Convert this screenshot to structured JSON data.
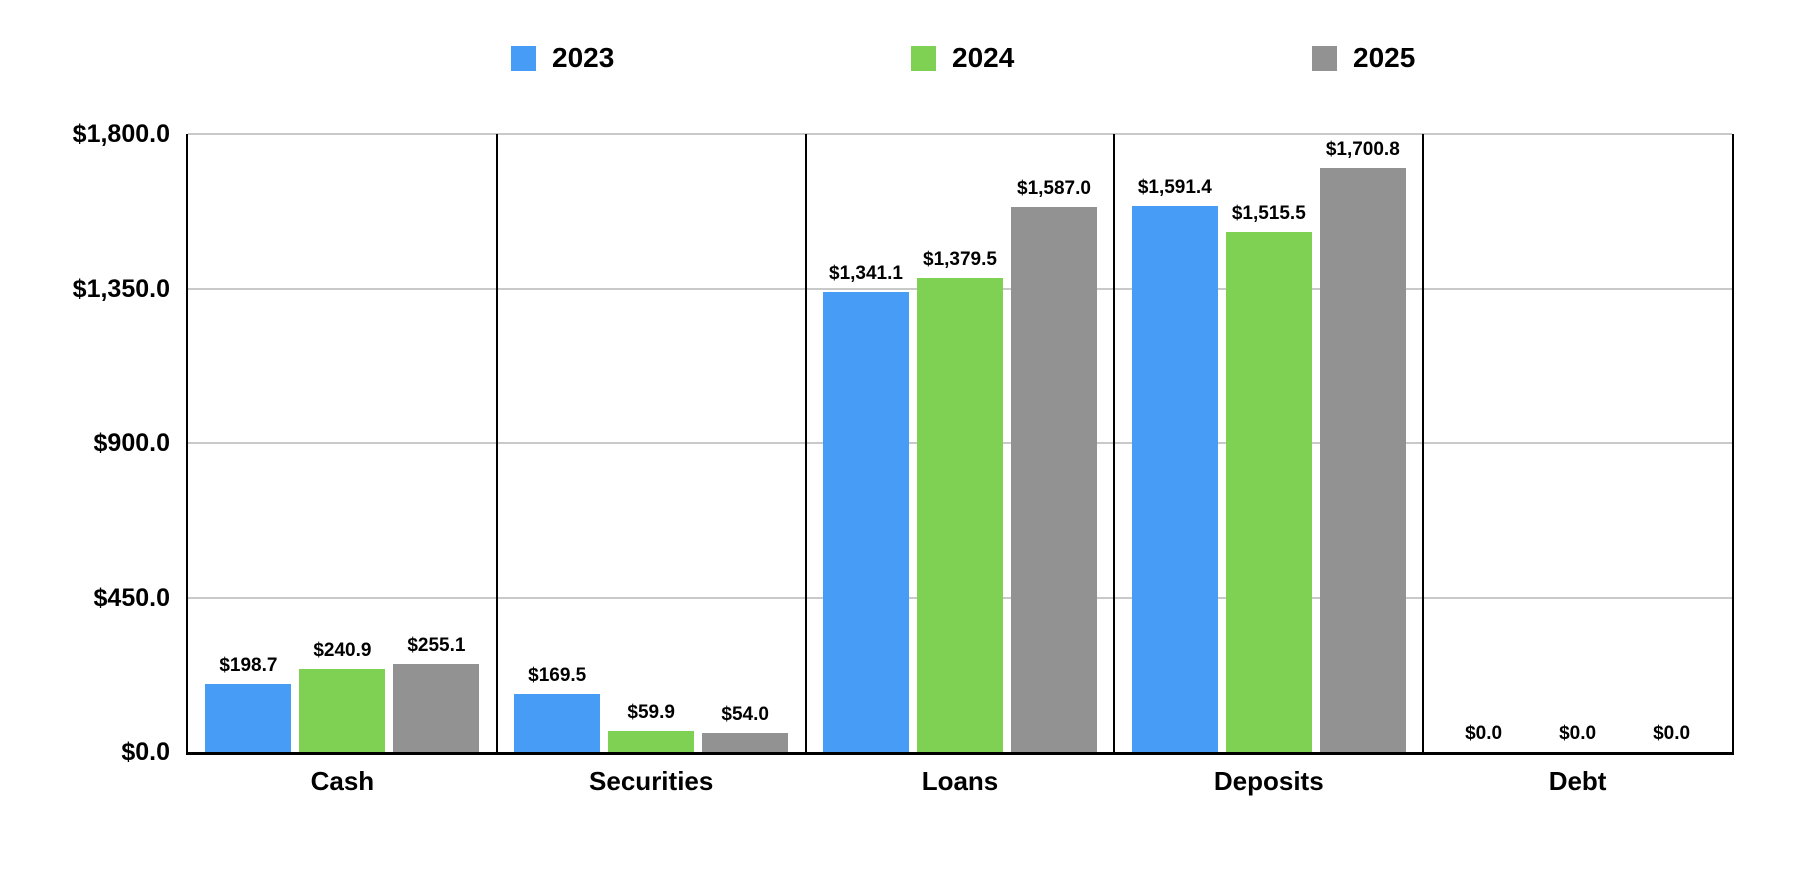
{
  "chart_data": {
    "type": "bar",
    "title": "",
    "xlabel": "",
    "ylabel": "",
    "categories": [
      "Cash",
      "Securities",
      "Loans",
      "Deposits",
      "Debt"
    ],
    "series": [
      {
        "name": "2023",
        "color": "#479CF5",
        "values": [
          198.7,
          169.5,
          1341.1,
          1591.4,
          0.0
        ],
        "labels": [
          "$198.7",
          "$169.5",
          "$1,341.1",
          "$1,591.4",
          "$0.0"
        ]
      },
      {
        "name": "2024",
        "color": "#7ED152",
        "values": [
          240.9,
          59.9,
          1379.5,
          1515.5,
          0.0
        ],
        "labels": [
          "$240.9",
          "$59.9",
          "$1,379.5",
          "$1,515.5",
          "$0.0"
        ]
      },
      {
        "name": "2025",
        "color": "#929292",
        "values": [
          255.1,
          54.0,
          1587.0,
          1700.8,
          0.0
        ],
        "labels": [
          "$255.1",
          "$54.0",
          "$1,587.0",
          "$1,700.8",
          "$0.0"
        ]
      }
    ],
    "y_axis": {
      "ylim": [
        0,
        1800
      ],
      "ticks": [
        {
          "label": "$1,800.0",
          "value": 1800
        },
        {
          "label": "$1,350.0",
          "value": 1350
        },
        {
          "label": "$900.0",
          "value": 900
        },
        {
          "label": "$450.0",
          "value": 450
        },
        {
          "label": "$0.0",
          "value": 0
        }
      ]
    },
    "grid": "horizontal-major",
    "legend_position": "top"
  },
  "colors": {
    "series_2023": "#479CF5",
    "series_2024": "#7ED152",
    "series_2025": "#929292",
    "gridline": "#C9C9C9",
    "axis": "#000000",
    "background": "#FFFFFF",
    "text": "#000000"
  }
}
